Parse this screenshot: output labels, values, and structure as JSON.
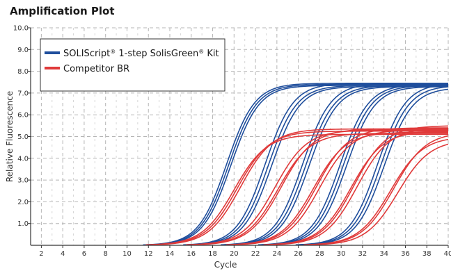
{
  "title": "Amplification Plot",
  "chart_data": {
    "type": "line",
    "title": "Amplification Plot",
    "xlabel": "Cycle",
    "ylabel": "Relative Fluorescence",
    "xlim": [
      1,
      40
    ],
    "ylim": [
      0,
      10
    ],
    "x_ticks": [
      2,
      4,
      6,
      8,
      10,
      12,
      14,
      16,
      18,
      20,
      22,
      24,
      26,
      28,
      30,
      32,
      34,
      36,
      38,
      40
    ],
    "y_ticks": [
      1.0,
      2.0,
      3.0,
      4.0,
      5.0,
      6.0,
      7.0,
      8.0,
      9.0,
      10.0
    ],
    "x_tick_labels": [
      "2",
      "4",
      "6",
      "8",
      "10",
      "12",
      "14",
      "16",
      "18",
      "20",
      "22",
      "24",
      "26",
      "28",
      "30",
      "32",
      "34",
      "36",
      "38",
      "40"
    ],
    "y_tick_labels": [
      "1.0",
      "2.0",
      "3.0",
      "4.0",
      "5.0",
      "6.0",
      "7.0",
      "8.0",
      "9.0",
      "10.0"
    ],
    "grid": true,
    "legend_placement": "top-left",
    "series": [
      {
        "name": "SOLIScript® 1-step SolisGreen® Kit",
        "color": "#1f4e9c",
        "legend": {
          "base": "SOLIScript",
          "sup1": "®",
          "mid": " 1-step SolisGreen",
          "sup2": "®",
          "end": " Kit"
        },
        "replicates": [
          {
            "midpoint": 19.3,
            "plateau": 7.45,
            "slope": 1.32
          },
          {
            "midpoint": 19.5,
            "plateau": 7.4,
            "slope": 1.32
          },
          {
            "midpoint": 19.7,
            "plateau": 7.35,
            "slope": 1.32
          },
          {
            "midpoint": 22.9,
            "plateau": 7.45,
            "slope": 1.32
          },
          {
            "midpoint": 23.2,
            "plateau": 7.35,
            "slope": 1.32
          },
          {
            "midpoint": 23.5,
            "plateau": 7.3,
            "slope": 1.32
          },
          {
            "midpoint": 26.4,
            "plateau": 7.45,
            "slope": 1.32
          },
          {
            "midpoint": 26.7,
            "plateau": 7.35,
            "slope": 1.32
          },
          {
            "midpoint": 27.0,
            "plateau": 7.3,
            "slope": 1.32
          },
          {
            "midpoint": 29.9,
            "plateau": 7.4,
            "slope": 1.32
          },
          {
            "midpoint": 30.2,
            "plateau": 7.35,
            "slope": 1.32
          },
          {
            "midpoint": 30.5,
            "plateau": 7.3,
            "slope": 1.32
          },
          {
            "midpoint": 33.4,
            "plateau": 7.45,
            "slope": 1.32
          },
          {
            "midpoint": 33.7,
            "plateau": 7.35,
            "slope": 1.32
          },
          {
            "midpoint": 34.0,
            "plateau": 7.25,
            "slope": 1.32
          }
        ]
      },
      {
        "name": "Competitor BR",
        "color": "#e03a3a",
        "legend": {
          "base": "Competitor BR",
          "sup1": "",
          "mid": "",
          "sup2": "",
          "end": ""
        },
        "replicates": [
          {
            "midpoint": 20.0,
            "plateau": 5.1,
            "slope": 1.5
          },
          {
            "midpoint": 20.3,
            "plateau": 5.25,
            "slope": 1.5
          },
          {
            "midpoint": 20.6,
            "plateau": 5.35,
            "slope": 1.5
          },
          {
            "midpoint": 23.8,
            "plateau": 5.3,
            "slope": 1.5
          },
          {
            "midpoint": 24.1,
            "plateau": 5.15,
            "slope": 1.5
          },
          {
            "midpoint": 24.4,
            "plateau": 5.35,
            "slope": 1.5
          },
          {
            "midpoint": 27.4,
            "plateau": 5.2,
            "slope": 1.5
          },
          {
            "midpoint": 27.7,
            "plateau": 5.4,
            "slope": 1.5
          },
          {
            "midpoint": 28.0,
            "plateau": 5.3,
            "slope": 1.5
          },
          {
            "midpoint": 30.9,
            "plateau": 5.25,
            "slope": 1.5
          },
          {
            "midpoint": 31.2,
            "plateau": 5.5,
            "slope": 1.5
          },
          {
            "midpoint": 31.5,
            "plateau": 5.4,
            "slope": 1.5
          },
          {
            "midpoint": 34.6,
            "plateau": 5.0,
            "slope": 1.5
          },
          {
            "midpoint": 34.9,
            "plateau": 5.2,
            "slope": 1.5
          },
          {
            "midpoint": 35.3,
            "plateau": 4.85,
            "slope": 1.5
          }
        ]
      }
    ]
  }
}
